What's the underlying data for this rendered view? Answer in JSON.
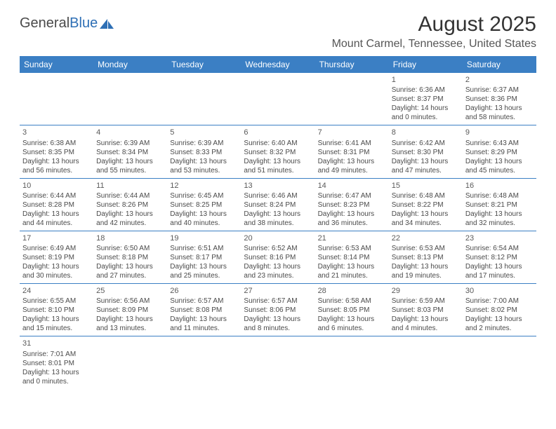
{
  "logo": {
    "part1": "General",
    "part2": "Blue"
  },
  "title": "August 2025",
  "location": "Mount Carmel, Tennessee, United States",
  "colors": {
    "header_bg": "#3b7fc4",
    "header_fg": "#ffffff",
    "text": "#4a4a4a",
    "rule": "#3b7fc4"
  },
  "dayNames": [
    "Sunday",
    "Monday",
    "Tuesday",
    "Wednesday",
    "Thursday",
    "Friday",
    "Saturday"
  ],
  "weeks": [
    [
      null,
      null,
      null,
      null,
      null,
      {
        "n": "1",
        "sr": "6:36 AM",
        "ss": "8:37 PM",
        "dl": "14 hours and 0 minutes."
      },
      {
        "n": "2",
        "sr": "6:37 AM",
        "ss": "8:36 PM",
        "dl": "13 hours and 58 minutes."
      }
    ],
    [
      {
        "n": "3",
        "sr": "6:38 AM",
        "ss": "8:35 PM",
        "dl": "13 hours and 56 minutes."
      },
      {
        "n": "4",
        "sr": "6:39 AM",
        "ss": "8:34 PM",
        "dl": "13 hours and 55 minutes."
      },
      {
        "n": "5",
        "sr": "6:39 AM",
        "ss": "8:33 PM",
        "dl": "13 hours and 53 minutes."
      },
      {
        "n": "6",
        "sr": "6:40 AM",
        "ss": "8:32 PM",
        "dl": "13 hours and 51 minutes."
      },
      {
        "n": "7",
        "sr": "6:41 AM",
        "ss": "8:31 PM",
        "dl": "13 hours and 49 minutes."
      },
      {
        "n": "8",
        "sr": "6:42 AM",
        "ss": "8:30 PM",
        "dl": "13 hours and 47 minutes."
      },
      {
        "n": "9",
        "sr": "6:43 AM",
        "ss": "8:29 PM",
        "dl": "13 hours and 45 minutes."
      }
    ],
    [
      {
        "n": "10",
        "sr": "6:44 AM",
        "ss": "8:28 PM",
        "dl": "13 hours and 44 minutes."
      },
      {
        "n": "11",
        "sr": "6:44 AM",
        "ss": "8:26 PM",
        "dl": "13 hours and 42 minutes."
      },
      {
        "n": "12",
        "sr": "6:45 AM",
        "ss": "8:25 PM",
        "dl": "13 hours and 40 minutes."
      },
      {
        "n": "13",
        "sr": "6:46 AM",
        "ss": "8:24 PM",
        "dl": "13 hours and 38 minutes."
      },
      {
        "n": "14",
        "sr": "6:47 AM",
        "ss": "8:23 PM",
        "dl": "13 hours and 36 minutes."
      },
      {
        "n": "15",
        "sr": "6:48 AM",
        "ss": "8:22 PM",
        "dl": "13 hours and 34 minutes."
      },
      {
        "n": "16",
        "sr": "6:48 AM",
        "ss": "8:21 PM",
        "dl": "13 hours and 32 minutes."
      }
    ],
    [
      {
        "n": "17",
        "sr": "6:49 AM",
        "ss": "8:19 PM",
        "dl": "13 hours and 30 minutes."
      },
      {
        "n": "18",
        "sr": "6:50 AM",
        "ss": "8:18 PM",
        "dl": "13 hours and 27 minutes."
      },
      {
        "n": "19",
        "sr": "6:51 AM",
        "ss": "8:17 PM",
        "dl": "13 hours and 25 minutes."
      },
      {
        "n": "20",
        "sr": "6:52 AM",
        "ss": "8:16 PM",
        "dl": "13 hours and 23 minutes."
      },
      {
        "n": "21",
        "sr": "6:53 AM",
        "ss": "8:14 PM",
        "dl": "13 hours and 21 minutes."
      },
      {
        "n": "22",
        "sr": "6:53 AM",
        "ss": "8:13 PM",
        "dl": "13 hours and 19 minutes."
      },
      {
        "n": "23",
        "sr": "6:54 AM",
        "ss": "8:12 PM",
        "dl": "13 hours and 17 minutes."
      }
    ],
    [
      {
        "n": "24",
        "sr": "6:55 AM",
        "ss": "8:10 PM",
        "dl": "13 hours and 15 minutes."
      },
      {
        "n": "25",
        "sr": "6:56 AM",
        "ss": "8:09 PM",
        "dl": "13 hours and 13 minutes."
      },
      {
        "n": "26",
        "sr": "6:57 AM",
        "ss": "8:08 PM",
        "dl": "13 hours and 11 minutes."
      },
      {
        "n": "27",
        "sr": "6:57 AM",
        "ss": "8:06 PM",
        "dl": "13 hours and 8 minutes."
      },
      {
        "n": "28",
        "sr": "6:58 AM",
        "ss": "8:05 PM",
        "dl": "13 hours and 6 minutes."
      },
      {
        "n": "29",
        "sr": "6:59 AM",
        "ss": "8:03 PM",
        "dl": "13 hours and 4 minutes."
      },
      {
        "n": "30",
        "sr": "7:00 AM",
        "ss": "8:02 PM",
        "dl": "13 hours and 2 minutes."
      }
    ],
    [
      {
        "n": "31",
        "sr": "7:01 AM",
        "ss": "8:01 PM",
        "dl": "13 hours and 0 minutes."
      },
      null,
      null,
      null,
      null,
      null,
      null
    ]
  ],
  "labels": {
    "sunrise": "Sunrise:",
    "sunset": "Sunset:",
    "daylight": "Daylight:"
  }
}
